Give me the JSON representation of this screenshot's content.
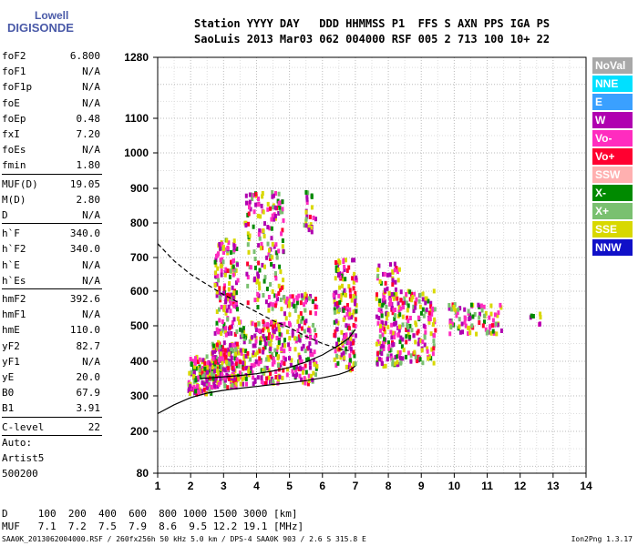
{
  "logo": {
    "line1": "Lowell",
    "line2": "DIGISONDE"
  },
  "header": {
    "row1": "Station YYYY DAY   DDD HHMMSS P1  FFS S AXN PPS IGA PS",
    "row2": "SaoLuis 2013 Mar03 062 004000 RSF 005 2 713 100 10+ 22"
  },
  "params_group1": [
    {
      "k": "foF2",
      "v": "6.800"
    },
    {
      "k": "foF1",
      "v": "N/A"
    },
    {
      "k": "foF1p",
      "v": "N/A"
    },
    {
      "k": "foE",
      "v": "N/A"
    },
    {
      "k": "foEp",
      "v": "0.48"
    },
    {
      "k": "fxI",
      "v": "7.20"
    },
    {
      "k": "foEs",
      "v": "N/A"
    },
    {
      "k": "fmin",
      "v": "1.80"
    }
  ],
  "params_group2": [
    {
      "k": "MUF(D)",
      "v": "19.05"
    },
    {
      "k": "M(D)",
      "v": "2.80"
    },
    {
      "k": "D",
      "v": "N/A"
    }
  ],
  "params_group3": [
    {
      "k": "h`F",
      "v": "340.0"
    },
    {
      "k": "h`F2",
      "v": "340.0"
    },
    {
      "k": "h`E",
      "v": "N/A"
    },
    {
      "k": "h`Es",
      "v": "N/A"
    }
  ],
  "params_group4": [
    {
      "k": "hmF2",
      "v": "392.6"
    },
    {
      "k": "hmF1",
      "v": "N/A"
    },
    {
      "k": "hmE",
      "v": "110.0"
    },
    {
      "k": "yF2",
      "v": "82.7"
    },
    {
      "k": "yF1",
      "v": "N/A"
    },
    {
      "k": "yE",
      "v": "20.0"
    },
    {
      "k": "B0",
      "v": "67.9"
    },
    {
      "k": "B1",
      "v": "3.91"
    }
  ],
  "params_group5": [
    {
      "k": "C-level",
      "v": "22"
    }
  ],
  "artist": {
    "l1": "Auto:",
    "l2": "Artist5",
    "l3": "500200"
  },
  "legend": [
    {
      "label": "NoVal",
      "color": "#a8a8a8"
    },
    {
      "label": "NNE",
      "color": "#00e0ff"
    },
    {
      "label": "E",
      "color": "#3aa0ff"
    },
    {
      "label": "W",
      "color": "#b000b0"
    },
    {
      "label": "Vo-",
      "color": "#ff2cbf"
    },
    {
      "label": "Vo+",
      "color": "#ff0030"
    },
    {
      "label": "SSW",
      "color": "#ffb0b0"
    },
    {
      "label": "X-",
      "color": "#008a00"
    },
    {
      "label": "X+",
      "color": "#7ac070"
    },
    {
      "label": "SSE",
      "color": "#d8d800"
    },
    {
      "label": "NNW",
      "color": "#1010c8"
    }
  ],
  "muf_table": {
    "row1": "D     100  200  400  600  800 1000 1500 3000 [km]",
    "row2": "MUF   7.1  7.2  7.5  7.9  8.6  9.5 12.2 19.1 [MHz]"
  },
  "footer": {
    "left": "SAA0K_2013062004000.RSF / 260fx256h 50 kHz 5.0 km / DPS-4 SAA0K 903 / 2.6 S 315.8 E",
    "right": "Ion2Png 1.3.17"
  },
  "chart_data": {
    "type": "scatter",
    "x_ticks": [
      "1",
      "2",
      "3",
      "4",
      "5",
      "6",
      "7",
      "8",
      "9",
      "10",
      "11",
      "12",
      "13",
      "14"
    ],
    "y_ticks": [
      "80",
      "200",
      "300",
      "400",
      "500",
      "600",
      "700",
      "800",
      "900",
      "1000",
      "1100",
      "1280"
    ],
    "y_tick_values": [
      80,
      200,
      300,
      400,
      500,
      600,
      700,
      800,
      900,
      1000,
      1100,
      1280
    ],
    "xlim": [
      1,
      14
    ],
    "ylim": [
      80,
      1280
    ],
    "grid": true,
    "clusters": [
      {
        "fmin": 1.9,
        "fmax": 2.6,
        "hmin": 310,
        "hmax": 420,
        "n": 140
      },
      {
        "fmin": 2.6,
        "fmax": 3.4,
        "hmin": 330,
        "hmax": 460,
        "n": 200
      },
      {
        "fmin": 2.7,
        "fmax": 3.4,
        "hmin": 480,
        "hmax": 760,
        "n": 160
      },
      {
        "fmin": 3.4,
        "fmax": 4.8,
        "hmin": 340,
        "hmax": 520,
        "n": 220
      },
      {
        "fmin": 3.6,
        "fmax": 4.8,
        "hmin": 550,
        "hmax": 900,
        "n": 170
      },
      {
        "fmin": 4.8,
        "fmax": 5.8,
        "hmin": 340,
        "hmax": 600,
        "n": 150
      },
      {
        "fmin": 5.4,
        "fmax": 5.8,
        "hmin": 780,
        "hmax": 900,
        "n": 25
      },
      {
        "fmin": 6.3,
        "fmax": 7.0,
        "hmin": 380,
        "hmax": 700,
        "n": 170
      },
      {
        "fmin": 7.6,
        "fmax": 8.3,
        "hmin": 390,
        "hmax": 690,
        "n": 160
      },
      {
        "fmin": 8.3,
        "fmax": 9.4,
        "hmin": 400,
        "hmax": 610,
        "n": 140
      },
      {
        "fmin": 9.8,
        "fmax": 11.4,
        "hmin": 480,
        "hmax": 570,
        "n": 90
      },
      {
        "fmin": 12.2,
        "fmax": 12.6,
        "hmin": 510,
        "hmax": 550,
        "n": 8
      }
    ],
    "trace_solid": {
      "x": [
        1.0,
        1.5,
        2.0,
        2.5,
        3.0,
        3.5,
        4.0,
        4.5,
        5.0,
        5.5,
        6.0,
        6.5,
        6.8,
        7.0
      ],
      "y": [
        250,
        275,
        295,
        308,
        316,
        322,
        327,
        333,
        338,
        344,
        352,
        362,
        372,
        386
      ]
    },
    "trace_solid2": {
      "x": [
        2.3,
        2.6,
        3.0,
        3.5,
        4.0,
        4.5,
        5.0,
        5.5,
        6.0,
        6.5,
        6.8,
        7.0
      ],
      "y": [
        350,
        352,
        355,
        359,
        364,
        372,
        382,
        398,
        418,
        445,
        465,
        490
      ]
    },
    "trace_dashed": {
      "x": [
        1.0,
        1.5,
        2.0,
        2.5,
        3.0,
        3.5,
        4.0,
        4.5,
        5.0,
        5.5,
        6.0,
        6.5,
        6.8
      ],
      "y": [
        740,
        690,
        650,
        620,
        590,
        565,
        540,
        515,
        495,
        470,
        450,
        435,
        430
      ]
    }
  }
}
